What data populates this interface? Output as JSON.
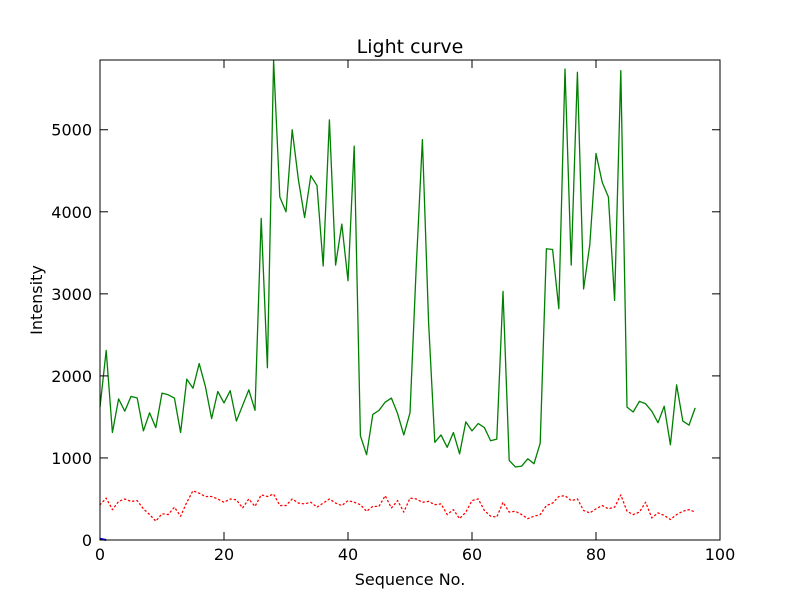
{
  "chart_data": {
    "type": "line",
    "title": "Light curve",
    "xlabel": "Sequence No.",
    "ylabel": "Intensity",
    "xlim": [
      0,
      100
    ],
    "ylim": [
      0,
      5850
    ],
    "x_ticks": [
      0,
      20,
      40,
      60,
      80,
      100
    ],
    "y_ticks": [
      0,
      1000,
      2000,
      3000,
      4000,
      5000
    ],
    "grid": false,
    "series": [
      {
        "color": "#008000",
        "style": "solid",
        "x": [
          0,
          1,
          2,
          3,
          4,
          5,
          6,
          7,
          8,
          9,
          10,
          11,
          12,
          13,
          14,
          15,
          16,
          17,
          18,
          19,
          20,
          21,
          22,
          23,
          24,
          25,
          26,
          27,
          28,
          29,
          30,
          31,
          32,
          33,
          34,
          35,
          36,
          37,
          38,
          39,
          40,
          41,
          42,
          43,
          44,
          45,
          46,
          47,
          48,
          49,
          50,
          51,
          52,
          53,
          54,
          55,
          56,
          57,
          58,
          59,
          60,
          61,
          62,
          63,
          64,
          65,
          66,
          67,
          68,
          69,
          70,
          71,
          72,
          73,
          74,
          75,
          76,
          77,
          78,
          79,
          80,
          81,
          82,
          83,
          84,
          85,
          86,
          87,
          88,
          89,
          90,
          91,
          92,
          93,
          94,
          95,
          96
        ],
        "values": [
          1620,
          2310,
          1310,
          1720,
          1570,
          1750,
          1730,
          1330,
          1550,
          1370,
          1790,
          1770,
          1730,
          1310,
          1960,
          1850,
          2150,
          1870,
          1480,
          1810,
          1670,
          1820,
          1450,
          1640,
          1830,
          1580,
          3920,
          2100,
          5840,
          4180,
          4000,
          5000,
          4390,
          3930,
          4440,
          4320,
          3340,
          5120,
          3350,
          3850,
          3160,
          4800,
          1270,
          1040,
          1530,
          1580,
          1680,
          1730,
          1540,
          1280,
          1550,
          3320,
          4880,
          2650,
          1190,
          1280,
          1130,
          1310,
          1050,
          1440,
          1330,
          1420,
          1370,
          1210,
          1230,
          3030,
          970,
          890,
          900,
          990,
          930,
          1180,
          3550,
          3540,
          2820,
          5740,
          3350,
          5700,
          3060,
          3600,
          4710,
          4360,
          4180,
          2920,
          5720,
          1620,
          1560,
          1690,
          1660,
          1570,
          1430,
          1630,
          1160,
          1890,
          1450,
          1400,
          1610
        ]
      },
      {
        "color": "#ff0000",
        "style": "dotted",
        "x": [
          0,
          1,
          2,
          3,
          4,
          5,
          6,
          7,
          8,
          9,
          10,
          11,
          12,
          13,
          14,
          15,
          16,
          17,
          18,
          19,
          20,
          21,
          22,
          23,
          24,
          25,
          26,
          27,
          28,
          29,
          30,
          31,
          32,
          33,
          34,
          35,
          36,
          37,
          38,
          39,
          40,
          41,
          42,
          43,
          44,
          45,
          46,
          47,
          48,
          49,
          50,
          51,
          52,
          53,
          54,
          55,
          56,
          57,
          58,
          59,
          60,
          61,
          62,
          63,
          64,
          65,
          66,
          67,
          68,
          69,
          70,
          71,
          72,
          73,
          74,
          75,
          76,
          77,
          78,
          79,
          80,
          81,
          82,
          83,
          84,
          85,
          86,
          87,
          88,
          89,
          90,
          91,
          92,
          93,
          94,
          95,
          96
        ],
        "values": [
          430,
          510,
          370,
          470,
          500,
          470,
          480,
          380,
          310,
          230,
          320,
          310,
          400,
          290,
          460,
          600,
          570,
          530,
          530,
          500,
          460,
          500,
          490,
          390,
          500,
          410,
          550,
          530,
          560,
          420,
          420,
          500,
          450,
          440,
          460,
          400,
          450,
          500,
          450,
          420,
          480,
          460,
          430,
          350,
          410,
          410,
          540,
          390,
          480,
          340,
          510,
          500,
          460,
          470,
          430,
          440,
          310,
          370,
          260,
          340,
          480,
          500,
          360,
          290,
          280,
          460,
          340,
          350,
          310,
          260,
          290,
          310,
          420,
          450,
          530,
          540,
          480,
          500,
          360,
          330,
          380,
          420,
          380,
          400,
          550,
          350,
          310,
          340,
          460,
          270,
          330,
          300,
          250,
          310,
          350,
          370,
          340
        ]
      },
      {
        "color": "#0000ff",
        "style": "solid",
        "x": [
          0,
          1
        ],
        "values": [
          15,
          0
        ]
      }
    ]
  }
}
